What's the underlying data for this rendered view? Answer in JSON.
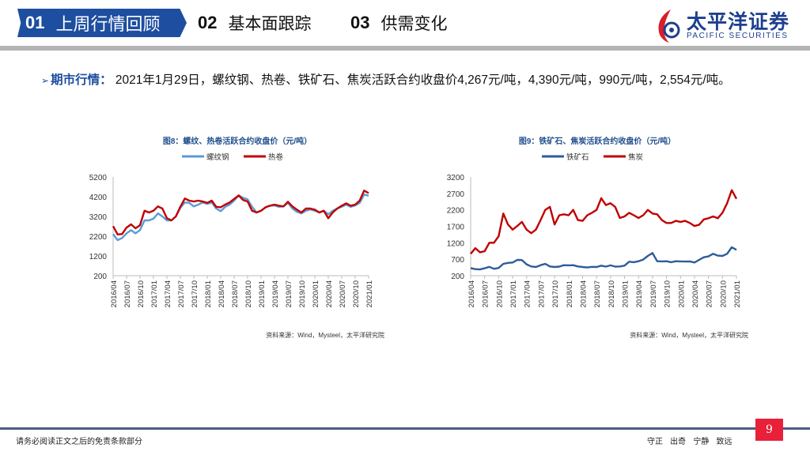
{
  "nav": {
    "tabs": [
      {
        "num": "01",
        "label": "上周行情回顾",
        "active": true
      },
      {
        "num": "02",
        "label": "基本面跟踪"
      },
      {
        "num": "03",
        "label": "供需变化"
      }
    ]
  },
  "logo": {
    "cn": "太平洋证券",
    "en": "PACIFIC SECURITIES"
  },
  "bullet": {
    "label": "期市行情：",
    "text": "2021年1月29日，螺纹钢、热卷、铁矿石、焦炭活跃合约收盘价4,267元/吨，4,390元/吨，990元/吨，2,554元/吨。"
  },
  "chart_data": [
    {
      "type": "line",
      "title": "图8：螺纹、热卷活跃合约收盘价（元/吨）",
      "source": "资料来源：Wind，Mysteel，太平洋研究院",
      "ylim": [
        200,
        5200
      ],
      "yticks": [
        "5200",
        "4200",
        "3200",
        "2200",
        "1200",
        "200"
      ],
      "xticks": [
        "2016/04",
        "2016/07",
        "2016/10",
        "2017/01",
        "2017/04",
        "2017/07",
        "2017/10",
        "2018/01",
        "2018/04",
        "2018/07",
        "2018/10",
        "2019/01",
        "2019/04",
        "2019/07",
        "2019/10",
        "2020/01",
        "2020/04",
        "2020/07",
        "2020/10",
        "2021/01"
      ],
      "x_range": [
        "2016/04",
        "2021/01"
      ],
      "legend": "top",
      "series": [
        {
          "name": "螺纹钢",
          "color": "#5b9bd5",
          "values": [
            2300,
            2000,
            2100,
            2350,
            2500,
            2350,
            2500,
            3000,
            3000,
            3100,
            3350,
            3200,
            3000,
            3000,
            3200,
            3650,
            3900,
            3900,
            3700,
            3800,
            3900,
            3850,
            3900,
            3600,
            3450,
            3700,
            3800,
            4000,
            4250,
            4150,
            4050,
            3700,
            3400,
            3500,
            3650,
            3750,
            3750,
            3700,
            3700,
            3900,
            3600,
            3450,
            3350,
            3500,
            3550,
            3500,
            3400,
            3500,
            3300,
            3500,
            3600,
            3700,
            3800,
            3700,
            3750,
            3900,
            4300,
            4267
          ]
        },
        {
          "name": "热卷",
          "color": "#c00000",
          "values": [
            2700,
            2300,
            2300,
            2650,
            2800,
            2600,
            2750,
            3500,
            3400,
            3500,
            3700,
            3600,
            3100,
            3000,
            3200,
            3700,
            4100,
            4000,
            3950,
            4000,
            3950,
            3900,
            4000,
            3700,
            3650,
            3800,
            3900,
            4100,
            4250,
            4050,
            3950,
            3500,
            3400,
            3500,
            3650,
            3750,
            3800,
            3750,
            3700,
            3950,
            3700,
            3550,
            3400,
            3600,
            3600,
            3550,
            3400,
            3500,
            3100,
            3400,
            3600,
            3750,
            3850,
            3750,
            3800,
            4000,
            4500,
            4390
          ]
        }
      ]
    },
    {
      "type": "line",
      "title": "图9：铁矿石、焦炭活跃合约收盘价（元/吨）",
      "source": "资料来源：Wind，Mysteel，太平洋研究院",
      "ylim": [
        200,
        3200
      ],
      "yticks": [
        "3200",
        "2700",
        "2200",
        "1700",
        "1200",
        "700",
        "200"
      ],
      "xticks": [
        "2016/04",
        "2016/07",
        "2016/10",
        "2017/01",
        "2017/04",
        "2017/07",
        "2017/10",
        "2018/01",
        "2018/04",
        "2018/07",
        "2018/10",
        "2019/01",
        "2019/04",
        "2019/07",
        "2019/10",
        "2020/01",
        "2020/04",
        "2020/07",
        "2020/10",
        "2021/01"
      ],
      "x_range": [
        "2016/04",
        "2021/01"
      ],
      "legend": "top",
      "series": [
        {
          "name": "铁矿石",
          "color": "#2e5c9a",
          "values": [
            420,
            400,
            380,
            430,
            460,
            420,
            430,
            560,
            580,
            600,
            680,
            690,
            530,
            480,
            450,
            520,
            560,
            480,
            450,
            490,
            520,
            530,
            520,
            480,
            450,
            460,
            460,
            470,
            490,
            490,
            510,
            490,
            480,
            510,
            610,
            620,
            640,
            700,
            800,
            900,
            640,
            650,
            640,
            620,
            640,
            650,
            620,
            650,
            600,
            680,
            760,
            790,
            850,
            820,
            800,
            870,
            1050,
            990
          ]
        },
        {
          "name": "焦炭",
          "color": "#c00000",
          "values": [
            850,
            1050,
            900,
            950,
            1200,
            1200,
            1400,
            2100,
            1750,
            1600,
            1700,
            1850,
            1600,
            1500,
            1600,
            1900,
            2200,
            2300,
            1750,
            2050,
            2050,
            2050,
            2200,
            1900,
            1850,
            2050,
            2100,
            2200,
            2550,
            2350,
            2400,
            2300,
            1950,
            2000,
            2100,
            2050,
            1950,
            2050,
            2200,
            2100,
            2050,
            1900,
            1800,
            1800,
            1850,
            1850,
            1850,
            1800,
            1700,
            1750,
            1900,
            1950,
            2000,
            1950,
            2100,
            2400,
            2800,
            2554
          ]
        }
      ]
    }
  ],
  "footer": {
    "disclaimer": "请务必阅读正文之后的免责条款部分",
    "motto": "守正 出奇 宁静 致远",
    "page": "9"
  }
}
